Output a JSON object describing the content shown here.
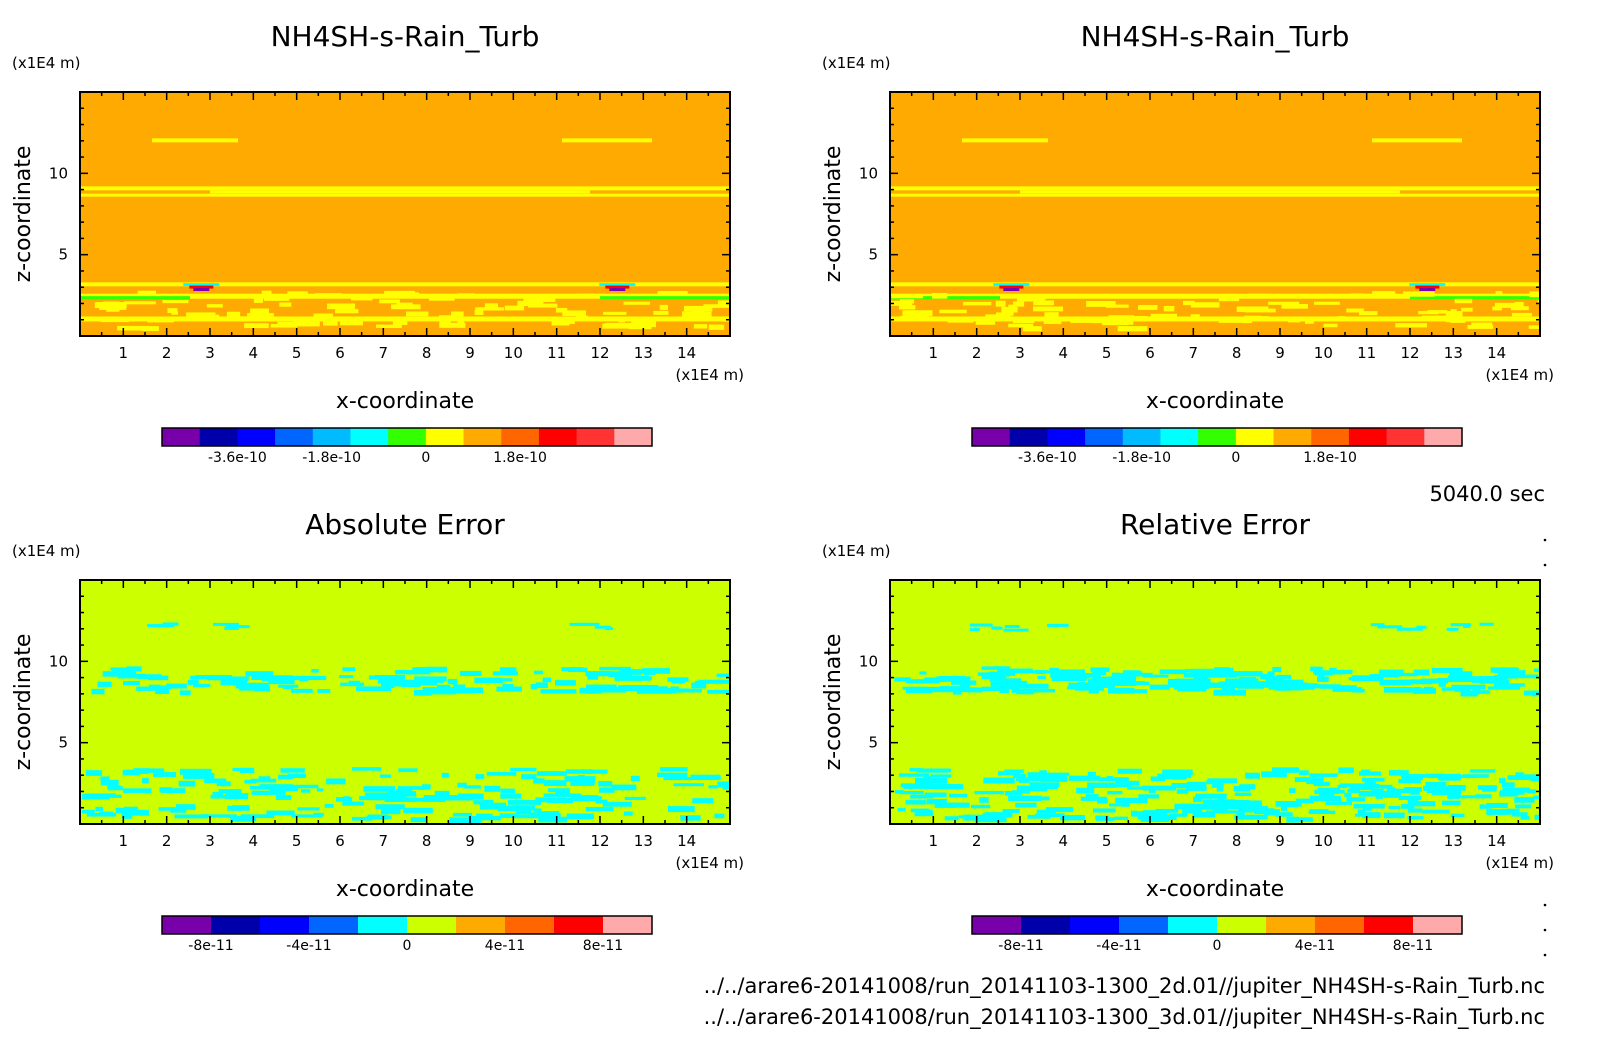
{
  "time_label": "5040.0 sec",
  "files": [
    "../../arare6-20141008/run_20141103-1300_2d.01//jupiter_NH4SH-s-Rain_Turb.nc",
    "../../arare6-20141008/run_20141103-1300_3d.01//jupiter_NH4SH-s-Rain_Turb.nc"
  ],
  "colors": {
    "field_background": "#FFAA00",
    "error_background": "#CCFF00",
    "band_yellow": "#FFFF00",
    "patch_cyan": "#00FFFF"
  },
  "chart_data": [
    {
      "type": "heatmap",
      "title": "NH4SH-s-Rain_Turb",
      "xlabel": "x-coordinate",
      "ylabel": "z-coordinate",
      "x_unit": "(x1E4 m)",
      "y_unit": "(x1E4 m)",
      "xlim": [
        0,
        15
      ],
      "ylim": [
        0,
        15
      ],
      "x_ticks": [
        "1",
        "2",
        "3",
        "4",
        "5",
        "6",
        "7",
        "8",
        "9",
        "10",
        "11",
        "12",
        "13",
        "14"
      ],
      "y_ticks": [
        "5",
        "10"
      ],
      "background_value": "0.9e-10",
      "colorbar": {
        "colors": [
          "#7700AA",
          "#0000AA",
          "#0000FF",
          "#0066FF",
          "#00BBFF",
          "#00FFFF",
          "#33FF00",
          "#FFFF00",
          "#FFAA00",
          "#FF6600",
          "#FF0000",
          "#FF3333",
          "#FFAAAA"
        ],
        "labels": [
          "-3.6e-10",
          "-1.8e-10",
          "0",
          "1.8e-10"
        ]
      }
    },
    {
      "type": "heatmap",
      "title": "NH4SH-s-Rain_Turb",
      "xlabel": "x-coordinate",
      "ylabel": "z-coordinate",
      "x_unit": "(x1E4 m)",
      "y_unit": "(x1E4 m)",
      "xlim": [
        0,
        15
      ],
      "ylim": [
        0,
        15
      ],
      "x_ticks": [
        "1",
        "2",
        "3",
        "4",
        "5",
        "6",
        "7",
        "8",
        "9",
        "10",
        "11",
        "12",
        "13",
        "14"
      ],
      "y_ticks": [
        "5",
        "10"
      ],
      "background_value": "0.9e-10",
      "colorbar": {
        "colors": [
          "#7700AA",
          "#0000AA",
          "#0000FF",
          "#0066FF",
          "#00BBFF",
          "#00FFFF",
          "#33FF00",
          "#FFFF00",
          "#FFAA00",
          "#FF6600",
          "#FF0000",
          "#FF3333",
          "#FFAAAA"
        ],
        "labels": [
          "-3.6e-10",
          "-1.8e-10",
          "0",
          "1.8e-10"
        ]
      }
    },
    {
      "type": "heatmap",
      "title": "Absolute Error",
      "xlabel": "x-coordinate",
      "ylabel": "z-coordinate",
      "x_unit": "(x1E4 m)",
      "y_unit": "(x1E4 m)",
      "xlim": [
        0,
        15
      ],
      "ylim": [
        0,
        15
      ],
      "x_ticks": [
        "1",
        "2",
        "3",
        "4",
        "5",
        "6",
        "7",
        "8",
        "9",
        "10",
        "11",
        "12",
        "13",
        "14"
      ],
      "y_ticks": [
        "5",
        "10"
      ],
      "background_value": "2e-11",
      "colorbar": {
        "colors": [
          "#7700AA",
          "#0000AA",
          "#0000FF",
          "#0066FF",
          "#00FFFF",
          "#CCFF00",
          "#FFAA00",
          "#FF6600",
          "#FF0000",
          "#FFAAAA"
        ],
        "labels": [
          "-8e-11",
          "-4e-11",
          "0",
          "4e-11",
          "8e-11"
        ]
      }
    },
    {
      "type": "heatmap",
      "title": "Relative Error",
      "xlabel": "x-coordinate",
      "ylabel": "z-coordinate",
      "x_unit": "(x1E4 m)",
      "y_unit": "(x1E4 m)",
      "xlim": [
        0,
        15
      ],
      "ylim": [
        0,
        15
      ],
      "x_ticks": [
        "1",
        "2",
        "3",
        "4",
        "5",
        "6",
        "7",
        "8",
        "9",
        "10",
        "11",
        "12",
        "13",
        "14"
      ],
      "y_ticks": [
        "5",
        "10"
      ],
      "background_value": "2e-11",
      "colorbar": {
        "colors": [
          "#7700AA",
          "#0000AA",
          "#0000FF",
          "#0066FF",
          "#00FFFF",
          "#CCFF00",
          "#FFAA00",
          "#FF6600",
          "#FF0000",
          "#FFAAAA"
        ],
        "labels": [
          "-8e-11",
          "-4e-11",
          "0",
          "4e-11",
          "8e-11"
        ]
      }
    }
  ]
}
